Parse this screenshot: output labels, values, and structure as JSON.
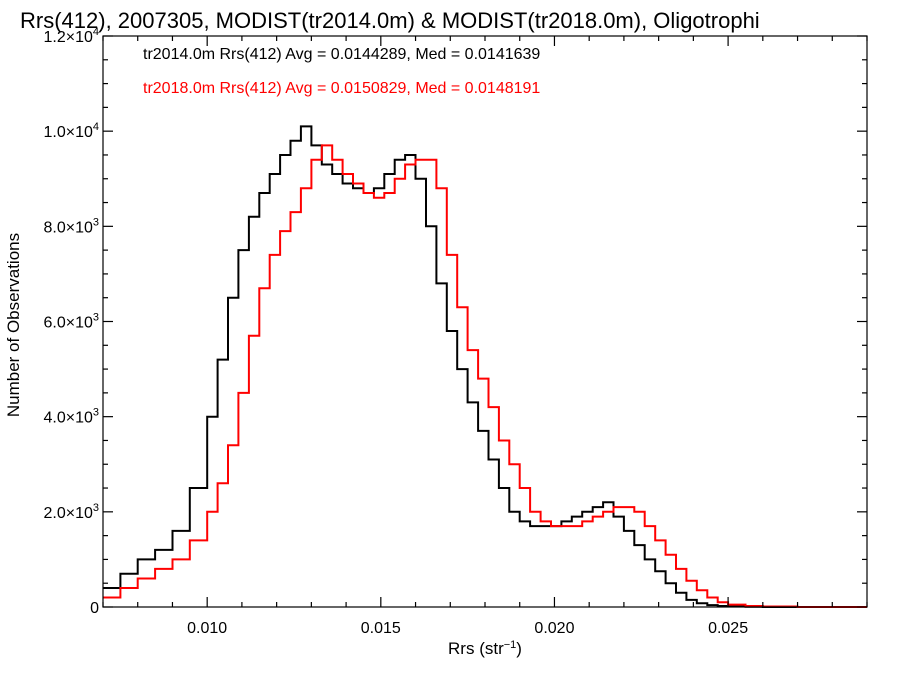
{
  "chart_data": {
    "type": "line",
    "title": "Rrs(412), 2007305, MODIST(tr2014.0m) & MODIST(tr2018.0m), Oligotrophi",
    "xlabel": "Rrs (str",
    "xlabel_sup": "−1",
    "xlabel_suffix": ")",
    "ylabel": "Number of Observations",
    "xlim": [
      0.007,
      0.029
    ],
    "ylim": [
      0,
      12000
    ],
    "step": true,
    "grid": false,
    "legend_position": "top-left",
    "x_ticks": [
      {
        "value": 0.01,
        "label": "0.010"
      },
      {
        "value": 0.015,
        "label": "0.015"
      },
      {
        "value": 0.02,
        "label": "0.020"
      },
      {
        "value": 0.025,
        "label": "0.025"
      }
    ],
    "y_ticks": [
      {
        "value": 0,
        "mant": "0",
        "exp": ""
      },
      {
        "value": 2000,
        "mant": "2.0×10",
        "exp": "3"
      },
      {
        "value": 4000,
        "mant": "4.0×10",
        "exp": "3"
      },
      {
        "value": 6000,
        "mant": "6.0×10",
        "exp": "3"
      },
      {
        "value": 8000,
        "mant": "8.0×10",
        "exp": "3"
      },
      {
        "value": 10000,
        "mant": "1.0×10",
        "exp": "4"
      },
      {
        "value": 12000,
        "mant": "1.2×10",
        "exp": "4"
      }
    ],
    "series": [
      {
        "name": "tr2014.0m Rrs(412) Avg = 0.0144289, Med = 0.0141639",
        "color": "#000000",
        "x": [
          0.007,
          0.0075,
          0.008,
          0.0085,
          0.009,
          0.0095,
          0.01,
          0.0103,
          0.0106,
          0.0109,
          0.0112,
          0.0115,
          0.0118,
          0.0121,
          0.0124,
          0.0127,
          0.013,
          0.0133,
          0.0136,
          0.0139,
          0.0142,
          0.0145,
          0.0148,
          0.0151,
          0.0154,
          0.0157,
          0.016,
          0.0163,
          0.0166,
          0.0169,
          0.0172,
          0.0175,
          0.0178,
          0.0181,
          0.0184,
          0.0187,
          0.019,
          0.0193,
          0.0196,
          0.0199,
          0.0202,
          0.0205,
          0.0208,
          0.0211,
          0.0214,
          0.0217,
          0.022,
          0.0223,
          0.0226,
          0.0229,
          0.0232,
          0.0235,
          0.0238,
          0.0241,
          0.0244,
          0.0247,
          0.025,
          0.0255,
          0.026,
          0.027,
          0.028,
          0.029
        ],
        "y": [
          400,
          700,
          1000,
          1200,
          1600,
          2500,
          4000,
          5200,
          6500,
          7500,
          8200,
          8700,
          9100,
          9500,
          9800,
          10100,
          9700,
          9300,
          9100,
          8900,
          8800,
          8700,
          8800,
          9100,
          9400,
          9500,
          9000,
          8000,
          6800,
          5800,
          5000,
          4300,
          3700,
          3100,
          2500,
          2000,
          1800,
          1700,
          1700,
          1700,
          1800,
          1900,
          2000,
          2100,
          2200,
          1900,
          1600,
          1300,
          1000,
          750,
          500,
          300,
          150,
          80,
          40,
          20,
          10,
          5,
          0,
          0,
          0,
          0
        ]
      },
      {
        "name": "tr2018.0m Rrs(412) Avg = 0.0150829, Med = 0.0148191",
        "color": "#ff0000",
        "x": [
          0.007,
          0.0075,
          0.008,
          0.0085,
          0.009,
          0.0095,
          0.01,
          0.0103,
          0.0106,
          0.0109,
          0.0112,
          0.0115,
          0.0118,
          0.0121,
          0.0124,
          0.0127,
          0.013,
          0.0133,
          0.0136,
          0.0139,
          0.0142,
          0.0145,
          0.0148,
          0.0151,
          0.0154,
          0.0157,
          0.016,
          0.0163,
          0.0166,
          0.0169,
          0.0172,
          0.0175,
          0.0178,
          0.0181,
          0.0184,
          0.0187,
          0.019,
          0.0193,
          0.0196,
          0.0199,
          0.0202,
          0.0205,
          0.0208,
          0.0211,
          0.0214,
          0.0217,
          0.022,
          0.0223,
          0.0226,
          0.0229,
          0.0232,
          0.0235,
          0.0238,
          0.0241,
          0.0244,
          0.0247,
          0.025,
          0.0255,
          0.026,
          0.027,
          0.028,
          0.029
        ],
        "y": [
          200,
          400,
          600,
          800,
          1000,
          1400,
          2000,
          2600,
          3400,
          4500,
          5700,
          6700,
          7400,
          7900,
          8300,
          8800,
          9400,
          9700,
          9400,
          9100,
          8900,
          8700,
          8600,
          8700,
          9000,
          9300,
          9400,
          9400,
          8800,
          7400,
          6300,
          5400,
          4800,
          4200,
          3500,
          3000,
          2500,
          2000,
          1800,
          1700,
          1700,
          1700,
          1800,
          1900,
          2000,
          2100,
          2100,
          2000,
          1700,
          1400,
          1100,
          800,
          550,
          350,
          200,
          100,
          50,
          20,
          10,
          0,
          0,
          0
        ]
      }
    ]
  }
}
